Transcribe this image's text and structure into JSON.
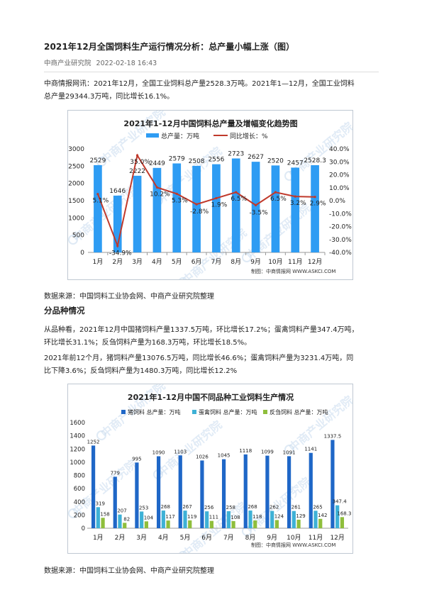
{
  "article": {
    "title": "2021年12月全国饲料生产运行情况分析：总产量小幅上涨（图）",
    "source": "中商产业研究院",
    "date": "2022-02-18 16:43",
    "intro_line1": "中商情报网讯：2021年12月，全国工业饲料总产量2528.3万吨。2021年1—12月，全国工业饲料",
    "intro_line2": "总产量29344.3万吨，同比增长16.1%。",
    "data_source_1": "数据来源：中国饲料工业协会网、中商产业研究院整理",
    "section_title": "分品种情况",
    "para2_line1": "从品种看，2021年12月中国猪饲料产量1337.5万吨，环比增长17.2%；蛋禽饲料产量347.4万吨，",
    "para2_line2": "环比增长31.1%；反刍饲料产量为168.3万吨，环比增长18.5%。",
    "para3_line1": "2021年前12个月，猪饲料产量13076.5万吨，同比增长46.6%；蛋禽饲料产量为3231.4万吨，同",
    "para3_line2": "比下降3.6%；反刍饲料产量为1480.3万吨，同比增长12.2%",
    "data_source_2": "数据来源：中国饲料工业协会网、中商产业研究院整理"
  },
  "colors": {
    "bar_blue": "#2e9cf3",
    "line_red": "#c0392b",
    "pig_blue": "#1f67c7",
    "egg_blue": "#3eb1d6",
    "rum_green": "#8fbe3c"
  },
  "watermark": {
    "text": "中商产业研究院",
    "credit": "制图：中商情报网 WWW.ASKCI.COM"
  },
  "chart_data": [
    {
      "type": "bar",
      "title": "2021年1-12月中国饲料总产量及增幅变化趋势图",
      "categories": [
        "1月",
        "2月",
        "3月",
        "4月",
        "5月",
        "6月",
        "7月",
        "8月",
        "9月",
        "10月",
        "11月",
        "12月"
      ],
      "series": [
        {
          "name": "总产量：万吨",
          "type": "bar",
          "axis": "left",
          "values": [
            2529,
            1646,
            2222,
            2449,
            2579,
            2508,
            2556,
            2723,
            2627,
            2520,
            2457,
            2528.3
          ],
          "labels": [
            "2529",
            "1646",
            "2222",
            "2449",
            "2579",
            "2508",
            "2556",
            "2723",
            "2627",
            "2520",
            "2457",
            "2528.3"
          ]
        },
        {
          "name": "同比增长：%",
          "type": "line",
          "axis": "right",
          "values": [
            5.1,
            -34.9,
            35.0,
            10.2,
            5.3,
            -2.8,
            1.9,
            6.5,
            -3.5,
            6.5,
            3.2,
            2.9
          ],
          "labels": [
            "5.1%",
            "-34.9%",
            "35.0%",
            "10.2%",
            "5.3%",
            "-2.8%",
            "1.9%",
            "6.5%",
            "-3.5%",
            "6.5%",
            "3.2%",
            "2.9%"
          ]
        }
      ],
      "ylim_left": [
        0,
        3000
      ],
      "yticks_left": [
        "0",
        "500",
        "1000",
        "1500",
        "2000",
        "2500",
        "3000"
      ],
      "ylim_right": [
        -40,
        40
      ],
      "yticks_right": [
        "-40.0%",
        "-30.0%",
        "-20.0%",
        "-10.0%",
        "0.0%",
        "10.0%",
        "20.0%",
        "30.0%",
        "40.0%"
      ],
      "legend": "top"
    },
    {
      "type": "bar",
      "title": "2021年1-12月中国不同品种工业饲料生产情况",
      "categories": [
        "1月",
        "2月",
        "3月",
        "4月",
        "5月",
        "6月",
        "7月",
        "8月",
        "9月",
        "10月",
        "11月",
        "12月"
      ],
      "series": [
        {
          "name": "猪饲料 总产量：万吨",
          "values": [
            1252,
            779,
            995,
            1090,
            1103,
            1026,
            1045,
            1118,
            1099,
            1091,
            1141,
            1337.5
          ],
          "labels": [
            "1252",
            "779",
            "995",
            "1090",
            "1103",
            "1026",
            "1045",
            "1118",
            "1099",
            "1091",
            "1141",
            "1337.5"
          ]
        },
        {
          "name": "蛋禽饲料 总产量：万吨",
          "values": [
            319,
            207,
            253,
            268,
            267,
            256,
            258,
            268,
            262,
            261,
            265,
            347.4
          ],
          "labels": [
            "319",
            "207",
            "253",
            "268",
            "267",
            "256",
            "258",
            "268",
            "262",
            "261",
            "265",
            "347.4"
          ]
        },
        {
          "name": "反刍饲料 总产量：万吨",
          "values": [
            158,
            82,
            104,
            117,
            119,
            111,
            108,
            118,
            124,
            129,
            142,
            168.3
          ],
          "labels": [
            "158",
            "82",
            "104",
            "117",
            "119",
            "111",
            "108",
            "118",
            "124",
            "129",
            "142",
            "168.3"
          ]
        }
      ],
      "ylim": [
        0,
        1600
      ],
      "yticks": [
        "0",
        "200",
        "400",
        "600",
        "800",
        "1000",
        "1200",
        "1400",
        "1600"
      ],
      "legend": "top"
    }
  ]
}
